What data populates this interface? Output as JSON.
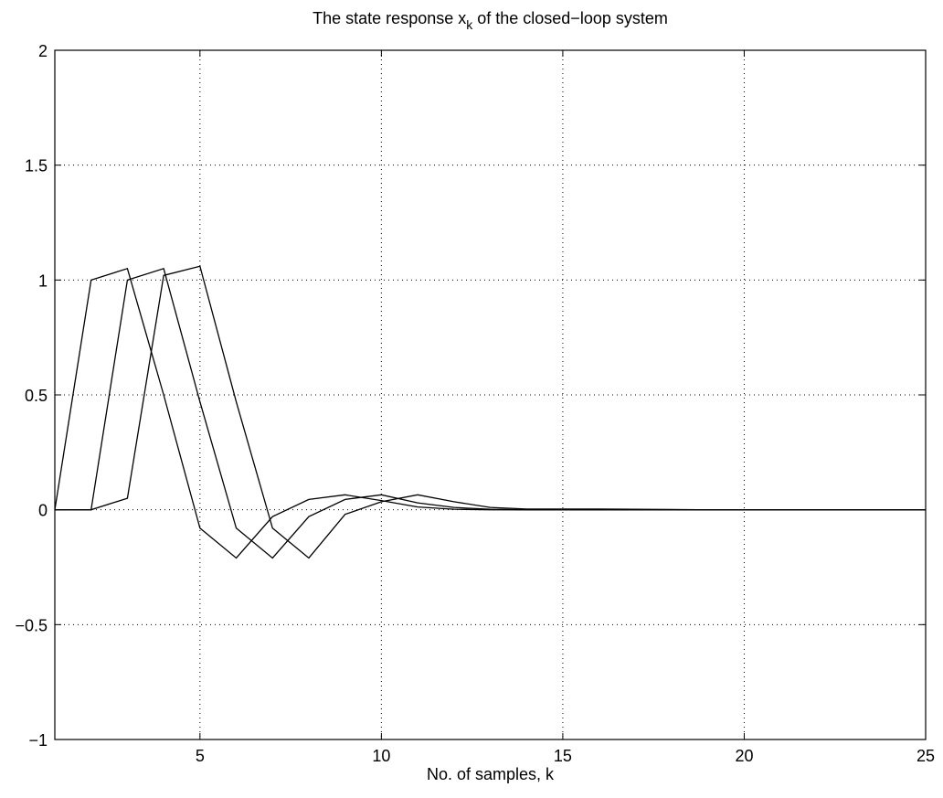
{
  "chart_data": {
    "type": "line",
    "title": {
      "main": "The state response x",
      "subscript": "k",
      "rest": " of the closed−loop system"
    },
    "xlabel": "No. of samples, k",
    "ylabel": "",
    "xlim": [
      1,
      25
    ],
    "ylim": [
      -1,
      2
    ],
    "xticks": [
      5,
      10,
      15,
      20,
      25
    ],
    "yticks": [
      -1,
      -0.5,
      0,
      0.5,
      1,
      1.5,
      2
    ],
    "xtick_labels": [
      "5",
      "10",
      "15",
      "20",
      "25"
    ],
    "ytick_labels": [
      "−1",
      "−0.5",
      "0",
      "0.5",
      "1",
      "1.5",
      "2"
    ],
    "grid": true,
    "line_color": "#000000",
    "series": [
      {
        "x": [
          1,
          2,
          3,
          4,
          5,
          6,
          7,
          8,
          9,
          10,
          11,
          12,
          13,
          14,
          15,
          16,
          17,
          18,
          19,
          20,
          21,
          22,
          23,
          24,
          25
        ],
        "values": [
          0,
          1.0,
          1.05,
          0.5,
          -0.08,
          -0.21,
          -0.03,
          0.045,
          0.065,
          0.04,
          0.012,
          0.002,
          0.0,
          0.0,
          0.0,
          0.0,
          0.0,
          0.0,
          0.0,
          0.0,
          0.0,
          0.0,
          0.0,
          0.0,
          0.0
        ]
      },
      {
        "x": [
          1,
          2,
          3,
          4,
          5,
          6,
          7,
          8,
          9,
          10,
          11,
          12,
          13,
          14,
          15,
          16,
          17,
          18,
          19,
          20,
          21,
          22,
          23,
          24,
          25
        ],
        "values": [
          0,
          0,
          1.0,
          1.05,
          0.47,
          -0.08,
          -0.21,
          -0.03,
          0.045,
          0.065,
          0.03,
          0.01,
          0.002,
          0.0,
          0.0,
          0.0,
          0.0,
          0.0,
          0.0,
          0.0,
          0.0,
          0.0,
          0.0,
          0.0,
          0.0
        ]
      },
      {
        "x": [
          1,
          2,
          3,
          4,
          5,
          6,
          7,
          8,
          9,
          10,
          11,
          12,
          13,
          14,
          15,
          16,
          17,
          18,
          19,
          20,
          21,
          22,
          23,
          24,
          25
        ],
        "values": [
          0,
          0,
          0.05,
          1.02,
          1.06,
          0.47,
          -0.08,
          -0.21,
          -0.02,
          0.035,
          0.065,
          0.035,
          0.01,
          0.003,
          0.003,
          0.003,
          0.002,
          0.001,
          0.0,
          0.0,
          0.0,
          0.0,
          0.0,
          0.0,
          0.0
        ]
      }
    ]
  }
}
